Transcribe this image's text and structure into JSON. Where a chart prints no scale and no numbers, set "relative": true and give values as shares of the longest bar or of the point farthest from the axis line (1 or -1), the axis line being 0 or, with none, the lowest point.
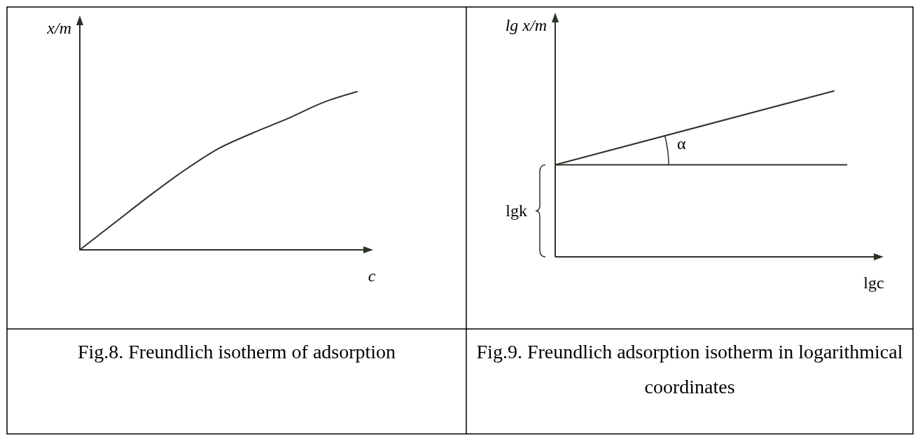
{
  "chart_data": [
    {
      "type": "line",
      "title": "Fig.8. Freundlich isotherm of adsorption",
      "xlabel": "c",
      "ylabel": "x/m",
      "relative": true,
      "categories": [
        null,
        null,
        null,
        null,
        null,
        null,
        null,
        null,
        null
      ],
      "series": [
        {
          "color": "#2b3328",
          "values": [
            0,
            0.17,
            0.34,
            0.5,
            0.64,
            0.74,
            0.83,
            0.93,
            1
          ]
        }
      ]
    },
    {
      "type": "line",
      "title": "Fig.9. Freundlich adsorption isotherm in logarithmical coordinates",
      "xlabel": "lgc",
      "ylabel": "lg x/m",
      "relative": true,
      "categories": [
        null,
        null
      ],
      "series": [
        {
          "color": "#2b3328",
          "values": [
            0.555,
            1
          ]
        }
      ],
      "ref_lines": [
        {
          "axis": "y",
          "value": 0.555
        }
      ],
      "annotations": [
        "lgk",
        "α"
      ]
    }
  ]
}
